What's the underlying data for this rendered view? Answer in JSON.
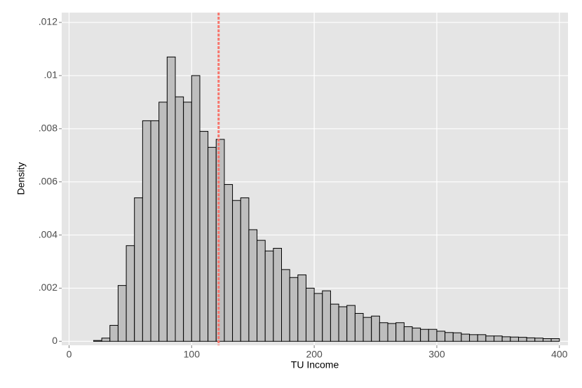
{
  "chart_data": {
    "type": "histogram",
    "xlabel": "TU Income",
    "ylabel": "Density",
    "bins": [
      20,
      26.67,
      33.33,
      40,
      46.67,
      53.33,
      60,
      66.67,
      73.33,
      80,
      86.67,
      93.33,
      100,
      106.67,
      113.33,
      120,
      126.67,
      133.33,
      140,
      146.67,
      153.33,
      160,
      166.67,
      173.33,
      180,
      186.67,
      193.33,
      200,
      206.67,
      213.33,
      220,
      226.67,
      233.33,
      240,
      246.67,
      253.33,
      260,
      266.67,
      273.33,
      280,
      286.67,
      293.33,
      300,
      306.67,
      313.33,
      320,
      326.67,
      333.33,
      340,
      346.67,
      353.33,
      360,
      366.67,
      373.33,
      380,
      386.67,
      393.33,
      400
    ],
    "values": [
      3e-05,
      0.00012,
      0.0006,
      0.0021,
      0.0036,
      0.0054,
      0.0083,
      0.0083,
      0.009,
      0.0107,
      0.0092,
      0.009,
      0.01,
      0.0079,
      0.0073,
      0.0076,
      0.0059,
      0.0053,
      0.0054,
      0.0042,
      0.0038,
      0.0034,
      0.0035,
      0.0027,
      0.0024,
      0.0025,
      0.002,
      0.0018,
      0.0019,
      0.0014,
      0.0013,
      0.00135,
      0.00105,
      0.0009,
      0.00095,
      0.0007,
      0.00067,
      0.0007,
      0.00055,
      0.0005,
      0.00045,
      0.00045,
      0.00038,
      0.00033,
      0.00032,
      0.00027,
      0.00025,
      0.00025,
      0.0002,
      0.0002,
      0.00017,
      0.00016,
      0.00015,
      0.00013,
      0.00012,
      0.0001,
      0.0001
    ],
    "color": "#bebebe",
    "edge_color": "#000000",
    "reference_line": {
      "x": 122,
      "color": "#f8766d"
    },
    "xlim": [
      -6,
      407
    ],
    "ylim": [
      -0.00015,
      0.01237
    ],
    "xticks": [
      0,
      100,
      200,
      300,
      400
    ],
    "yticks": [
      0,
      {
        "value": 0.002,
        "label": ".002"
      },
      {
        "value": 0.004,
        "label": ".004"
      },
      {
        "value": 0.006,
        "label": ".006"
      },
      {
        "value": 0.008,
        "label": ".008"
      },
      {
        "value": 0.01,
        "label": ".01"
      },
      {
        "value": 0.012,
        "label": ".012"
      }
    ],
    "grid": true
  }
}
